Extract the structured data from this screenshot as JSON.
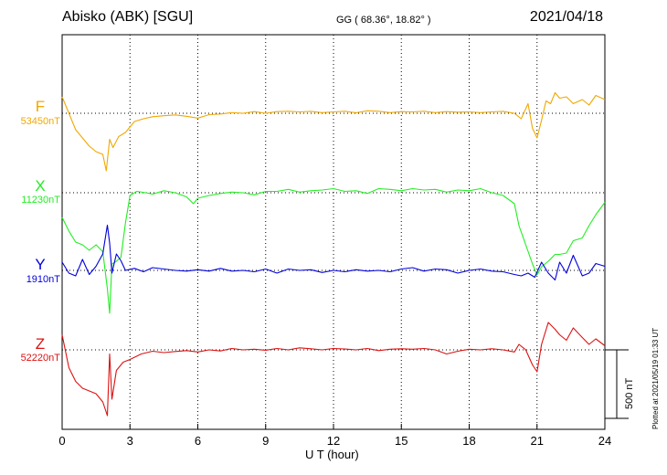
{
  "header": {
    "title": "Abisko (ABK)  [SGU]",
    "coords": "GG ( 68.36°,  18.82° )",
    "date": "2021/04/18"
  },
  "footer": {
    "plotted": "Plotted at 2021/05/19 01:33 UT",
    "scale_label": "500 nT"
  },
  "chart_data": {
    "type": "line",
    "xlabel": "U T (hour)",
    "xlim": [
      0,
      24
    ],
    "xticks": [
      0,
      3,
      6,
      9,
      12,
      15,
      18,
      21,
      24
    ],
    "grid": true,
    "scale_bar_nT": 500,
    "series": [
      {
        "name": "F",
        "baseline": "53450nT",
        "color": "#f0a800",
        "x": [
          0,
          0.3,
          0.6,
          0.9,
          1.2,
          1.5,
          1.8,
          1.95,
          2.1,
          2.25,
          2.5,
          2.8,
          3.2,
          3.6,
          4,
          4.5,
          5,
          5.5,
          6,
          6.5,
          7,
          7.5,
          8,
          8.5,
          9,
          9.5,
          10,
          10.5,
          11,
          11.5,
          12,
          12.5,
          13,
          13.5,
          14,
          14.5,
          15,
          15.5,
          16,
          16.5,
          17,
          17.5,
          18,
          18.5,
          19,
          19.5,
          20,
          20.3,
          20.6,
          20.8,
          21,
          21.2,
          21.4,
          21.6,
          21.8,
          22,
          22.3,
          22.6,
          23,
          23.3,
          23.6,
          24
        ],
        "values": [
          120,
          0,
          -120,
          -180,
          -240,
          -280,
          -300,
          -420,
          -190,
          -250,
          -170,
          -140,
          -60,
          -40,
          -25,
          -18,
          -12,
          -22,
          -35,
          -10,
          -5,
          5,
          0,
          12,
          0,
          12,
          15,
          10,
          14,
          5,
          10,
          15,
          4,
          18,
          15,
          5,
          12,
          10,
          15,
          5,
          12,
          8,
          10,
          5,
          10,
          14,
          0,
          -40,
          70,
          -110,
          -180,
          -50,
          90,
          70,
          150,
          110,
          120,
          70,
          100,
          60,
          130,
          100
        ]
      },
      {
        "name": "X",
        "baseline": "11230nT",
        "color": "#22ee22",
        "x": [
          0,
          0.3,
          0.6,
          0.9,
          1.2,
          1.5,
          1.8,
          2.0,
          2.1,
          2.2,
          2.4,
          2.6,
          2.8,
          3.0,
          3.3,
          3.7,
          4,
          4.5,
          5,
          5.5,
          5.8,
          6,
          6.5,
          7,
          7.5,
          8,
          8.5,
          9,
          9.5,
          10,
          10.5,
          11,
          11.5,
          12,
          12.5,
          13,
          13.5,
          14,
          14.5,
          15,
          15.5,
          16,
          16.5,
          17,
          17.5,
          18,
          18.5,
          19,
          19.5,
          20,
          20.2,
          20.5,
          20.8,
          21,
          21.2,
          21.5,
          21.8,
          22,
          22.3,
          22.6,
          23,
          23.3,
          23.6,
          24
        ],
        "values": [
          -180,
          -280,
          -360,
          -380,
          -420,
          -380,
          -430,
          -700,
          -880,
          -520,
          -500,
          -470,
          -220,
          -20,
          10,
          0,
          -10,
          15,
          0,
          -30,
          -80,
          -40,
          -20,
          -5,
          5,
          0,
          -15,
          10,
          10,
          25,
          5,
          15,
          20,
          30,
          10,
          15,
          -5,
          30,
          25,
          15,
          30,
          20,
          25,
          5,
          20,
          15,
          30,
          0,
          -20,
          -80,
          -240,
          -380,
          -520,
          -600,
          -540,
          -500,
          -450,
          -450,
          -440,
          -350,
          -330,
          -240,
          -160,
          -70
        ]
      },
      {
        "name": "Y",
        "baseline": "1910nT",
        "color": "#0000dd",
        "x": [
          0,
          0.3,
          0.6,
          0.9,
          1.2,
          1.5,
          1.8,
          2.0,
          2.1,
          2.2,
          2.4,
          2.6,
          2.8,
          3.2,
          3.6,
          4,
          4.5,
          5,
          5.5,
          6,
          6.5,
          7,
          7.5,
          8,
          8.5,
          9,
          9.5,
          10,
          10.5,
          11,
          11.5,
          12,
          12.5,
          13,
          13.5,
          14,
          14.5,
          15,
          15.5,
          16,
          16.5,
          17,
          17.5,
          18,
          18.5,
          19,
          19.5,
          20,
          20.3,
          20.6,
          20.9,
          21.2,
          21.5,
          21.8,
          22,
          22.3,
          22.6,
          23,
          23.3,
          23.6,
          24
        ],
        "values": [
          60,
          -20,
          -40,
          80,
          -30,
          30,
          120,
          330,
          200,
          -20,
          120,
          70,
          0,
          15,
          -10,
          20,
          10,
          0,
          -5,
          5,
          -5,
          15,
          -5,
          0,
          -10,
          10,
          -20,
          10,
          0,
          5,
          -15,
          0,
          -10,
          5,
          -5,
          0,
          -10,
          10,
          20,
          -5,
          10,
          5,
          -20,
          0,
          10,
          -5,
          -10,
          -30,
          -40,
          -20,
          -50,
          60,
          -20,
          -70,
          60,
          -20,
          110,
          -40,
          -20,
          50,
          30
        ]
      },
      {
        "name": "Z",
        "baseline": "52220nT",
        "color": "#dd1111",
        "x": [
          0,
          0.3,
          0.6,
          0.9,
          1.2,
          1.5,
          1.8,
          2.0,
          2.1,
          2.2,
          2.4,
          2.7,
          3.0,
          3.5,
          4,
          4.5,
          5,
          5.5,
          6,
          6.5,
          7,
          7.5,
          8,
          8.5,
          9,
          9.5,
          10,
          10.5,
          11,
          11.5,
          12,
          12.5,
          13,
          13.5,
          14,
          14.5,
          15,
          15.5,
          16,
          16.5,
          17,
          17.5,
          18,
          18.5,
          19,
          19.5,
          20,
          20.2,
          20.5,
          20.8,
          21,
          21.2,
          21.5,
          21.8,
          22,
          22.3,
          22.6,
          23,
          23.3,
          23.6,
          24
        ],
        "values": [
          110,
          -130,
          -230,
          -280,
          -300,
          -320,
          -380,
          -480,
          -30,
          -360,
          -150,
          -90,
          -70,
          -30,
          -10,
          -20,
          -12,
          -5,
          -15,
          0,
          -8,
          10,
          0,
          5,
          -3,
          10,
          0,
          15,
          8,
          0,
          10,
          6,
          0,
          10,
          -5,
          5,
          8,
          5,
          10,
          0,
          -30,
          -10,
          5,
          0,
          8,
          0,
          -15,
          40,
          0,
          -110,
          -160,
          40,
          200,
          150,
          110,
          70,
          160,
          90,
          40,
          80,
          30
        ]
      }
    ]
  }
}
